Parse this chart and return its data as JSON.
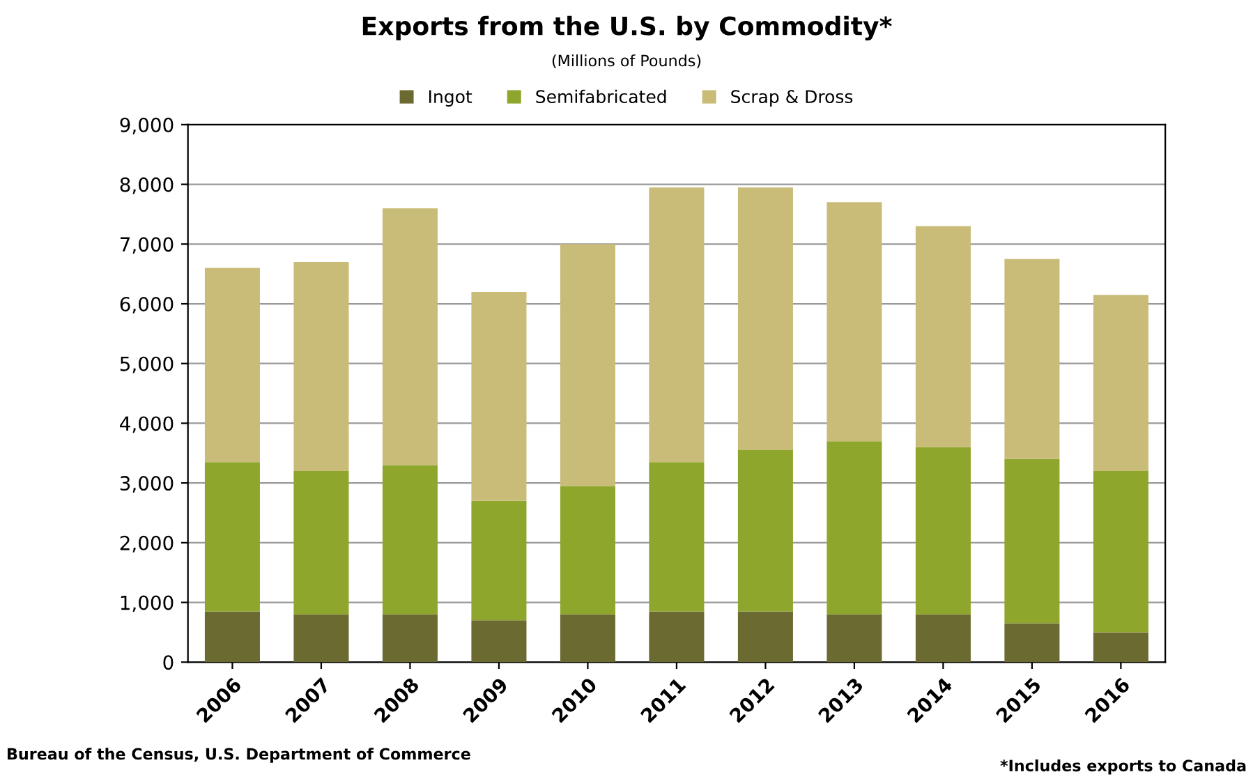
{
  "chart_data": {
    "type": "bar",
    "title": "Exports from the U.S. by Commodity*",
    "subtitle": "(Millions of Pounds)",
    "categories": [
      "2006",
      "2007",
      "2008",
      "2009",
      "2010",
      "2011",
      "2012",
      "2013",
      "2014",
      "2015",
      "2016"
    ],
    "stacked": true,
    "series": [
      {
        "name": "Ingot",
        "color": "#6b6a30",
        "values": [
          850,
          800,
          800,
          700,
          800,
          850,
          850,
          800,
          800,
          650,
          500
        ]
      },
      {
        "name": "Semifabricated",
        "color": "#8fa62c",
        "values": [
          2500,
          2400,
          2500,
          2000,
          2150,
          2500,
          2700,
          2900,
          2800,
          2750,
          2700
        ]
      },
      {
        "name": "Scrap & Dross",
        "color": "#c8bc78",
        "values": [
          3250,
          3500,
          4300,
          3500,
          4050,
          4600,
          4400,
          4000,
          3700,
          3350,
          2950
        ]
      }
    ],
    "ylim": [
      0,
      9000
    ],
    "yticks": [
      {
        "value": 0,
        "label": "0"
      },
      {
        "value": 1000,
        "label": "1,000"
      },
      {
        "value": 2000,
        "label": "2,000"
      },
      {
        "value": 3000,
        "label": "3,000"
      },
      {
        "value": 4000,
        "label": "4,000"
      },
      {
        "value": 5000,
        "label": "5,000"
      },
      {
        "value": 6000,
        "label": "6,000"
      },
      {
        "value": 7000,
        "label": "7,000"
      },
      {
        "value": 8000,
        "label": "8,000"
      },
      {
        "value": 9000,
        "label": "9,000"
      }
    ],
    "grid": "y",
    "legend": "top",
    "annotations": [
      "Bureau of the Census, U.S. Department of Commerce",
      "*Includes exports to Canada"
    ]
  }
}
